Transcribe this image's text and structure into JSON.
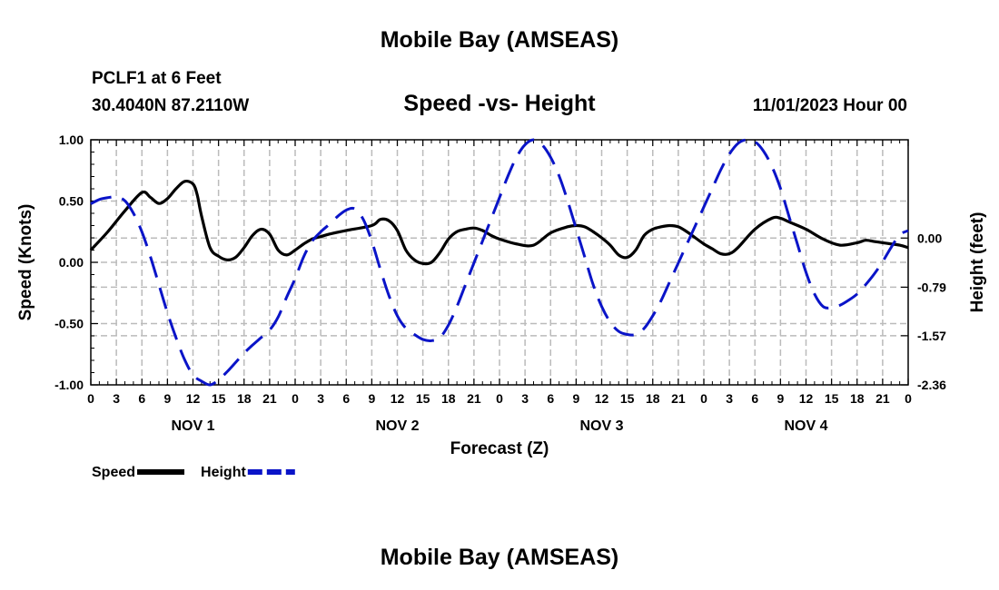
{
  "header": {
    "title": "Mobile Bay (AMSEAS)",
    "station": "PCLF1 at 6 Feet",
    "coords": "30.4040N  87.2110W",
    "subtitle": "Speed -vs- Height",
    "datetime": "11/01/2023 Hour 00"
  },
  "footer": {
    "title": "Mobile Bay (AMSEAS)"
  },
  "colors": {
    "speed": "#000000",
    "height": "#0a14c8",
    "grid": "#bbbbbb"
  },
  "chart_data": {
    "type": "line",
    "title": "Speed -vs- Height",
    "xlabel": "Forecast (Z)",
    "ylabel": "Speed (Knots)",
    "ylabel_right": "Height (feet)",
    "x_range_hours": [
      0,
      96
    ],
    "ylim": [
      -1.0,
      1.0
    ],
    "ylim_right": [
      -2.36,
      1.58
    ],
    "y_ticks": [
      "1.00",
      "0.50",
      "0.00",
      "-0.50",
      "-1.00"
    ],
    "y_tick_values": [
      1.0,
      0.5,
      0.0,
      -0.5,
      -1.0
    ],
    "y_right_ticks": [
      "0.00",
      "-0.79",
      "-1.57",
      "-2.36"
    ],
    "y_right_tick_values": [
      0.0,
      -0.79,
      -1.57,
      -2.36
    ],
    "x_tick_hours": [
      0,
      3,
      6,
      9,
      12,
      15,
      18,
      21,
      24,
      27,
      30,
      33,
      36,
      39,
      42,
      45,
      48,
      51,
      54,
      57,
      60,
      63,
      66,
      69,
      72,
      75,
      78,
      81,
      84,
      87,
      90,
      93,
      96
    ],
    "x_tick_labels": [
      "0",
      "3",
      "6",
      "9",
      "12",
      "15",
      "18",
      "21",
      "0",
      "3",
      "6",
      "9",
      "12",
      "15",
      "18",
      "21",
      "0",
      "3",
      "6",
      "9",
      "12",
      "15",
      "18",
      "21",
      "0",
      "3",
      "6",
      "9",
      "12",
      "15",
      "18",
      "21",
      "0"
    ],
    "day_labels": [
      {
        "label": "NOV 1",
        "hour": 12
      },
      {
        "label": "NOV 2",
        "hour": 36
      },
      {
        "label": "NOV 3",
        "hour": 60
      },
      {
        "label": "NOV 4",
        "hour": 84
      }
    ],
    "series": [
      {
        "name": "Speed",
        "axis": "left",
        "style": "solid",
        "x": [
          0,
          2,
          4,
          6,
          7,
          8,
          9,
          10,
          11,
          12,
          12.5,
          13,
          14,
          15,
          16,
          17,
          18,
          19,
          20,
          21,
          22,
          23,
          24,
          25,
          26,
          27,
          28,
          30,
          33,
          34,
          35,
          36,
          37,
          38,
          39,
          40,
          41,
          42,
          43,
          44,
          45,
          46,
          47,
          48,
          50,
          52,
          54,
          56,
          57,
          58,
          59,
          60,
          61,
          62,
          63,
          64,
          65,
          66,
          67,
          68,
          69,
          70,
          71,
          72,
          73,
          74,
          75,
          76,
          78,
          80,
          81,
          82,
          84,
          86,
          88,
          90,
          91,
          92,
          93,
          94,
          95,
          96
        ],
        "values": [
          0.1,
          0.25,
          0.42,
          0.57,
          0.53,
          0.48,
          0.52,
          0.6,
          0.66,
          0.64,
          0.55,
          0.38,
          0.12,
          0.05,
          0.02,
          0.04,
          0.12,
          0.22,
          0.27,
          0.23,
          0.1,
          0.06,
          0.1,
          0.15,
          0.19,
          0.21,
          0.23,
          0.26,
          0.3,
          0.35,
          0.34,
          0.26,
          0.1,
          0.02,
          -0.01,
          0.0,
          0.08,
          0.19,
          0.25,
          0.27,
          0.28,
          0.26,
          0.22,
          0.19,
          0.15,
          0.14,
          0.24,
          0.29,
          0.3,
          0.29,
          0.25,
          0.2,
          0.14,
          0.06,
          0.04,
          0.1,
          0.22,
          0.27,
          0.29,
          0.3,
          0.29,
          0.25,
          0.2,
          0.15,
          0.11,
          0.07,
          0.07,
          0.12,
          0.27,
          0.36,
          0.36,
          0.33,
          0.27,
          0.19,
          0.14,
          0.16,
          0.18,
          0.17,
          0.16,
          0.15,
          0.14,
          0.12
        ]
      },
      {
        "name": "Height",
        "axis": "right",
        "style": "dashed",
        "x": [
          0,
          1,
          2,
          3,
          4,
          5,
          6,
          7,
          8,
          9,
          10,
          11,
          12,
          13,
          14,
          15,
          16,
          17,
          18,
          19,
          20,
          21,
          22,
          23,
          24,
          25,
          26,
          27,
          28,
          29,
          30,
          31,
          32,
          33,
          34,
          35,
          36,
          37,
          38,
          39,
          40,
          41,
          42,
          43,
          44,
          45,
          46,
          47,
          48,
          49,
          50,
          51,
          52,
          53,
          54,
          55,
          56,
          57,
          58,
          59,
          60,
          61,
          62,
          63,
          64,
          65,
          66,
          67,
          68,
          69,
          70,
          71,
          72,
          73,
          74,
          75,
          76,
          77,
          78,
          79,
          80,
          81,
          82,
          83,
          84,
          85,
          86,
          87,
          88,
          89,
          90,
          91,
          92,
          93,
          94,
          95,
          96
        ],
        "values": [
          0.55,
          0.62,
          0.65,
          0.66,
          0.6,
          0.4,
          0.1,
          -0.3,
          -0.75,
          -1.2,
          -1.6,
          -1.95,
          -2.2,
          -2.3,
          -2.36,
          -2.28,
          -2.15,
          -2.0,
          -1.85,
          -1.72,
          -1.6,
          -1.48,
          -1.27,
          -0.95,
          -0.65,
          -0.3,
          -0.05,
          0.1,
          0.22,
          0.35,
          0.45,
          0.47,
          0.3,
          -0.05,
          -0.5,
          -0.92,
          -1.25,
          -1.45,
          -1.55,
          -1.63,
          -1.65,
          -1.6,
          -1.4,
          -1.1,
          -0.75,
          -0.4,
          -0.05,
          0.3,
          0.65,
          1.0,
          1.3,
          1.5,
          1.58,
          1.5,
          1.3,
          1.0,
          0.6,
          0.15,
          -0.3,
          -0.75,
          -1.1,
          -1.35,
          -1.5,
          -1.55,
          -1.55,
          -1.45,
          -1.25,
          -1.0,
          -0.7,
          -0.4,
          -0.1,
          0.2,
          0.5,
          0.8,
          1.1,
          1.35,
          1.52,
          1.58,
          1.55,
          1.4,
          1.15,
          0.8,
          0.35,
          -0.1,
          -0.55,
          -0.9,
          -1.1,
          -1.12,
          -1.08,
          -1.0,
          -0.9,
          -0.75,
          -0.58,
          -0.38,
          -0.15,
          0.05,
          0.12
        ]
      }
    ],
    "legend": [
      {
        "label": "Speed",
        "color": "#000000",
        "style": "solid"
      },
      {
        "label": "Height",
        "color": "#0a14c8",
        "style": "dashed"
      }
    ],
    "legend_position": "bottom-left",
    "grid": true
  }
}
